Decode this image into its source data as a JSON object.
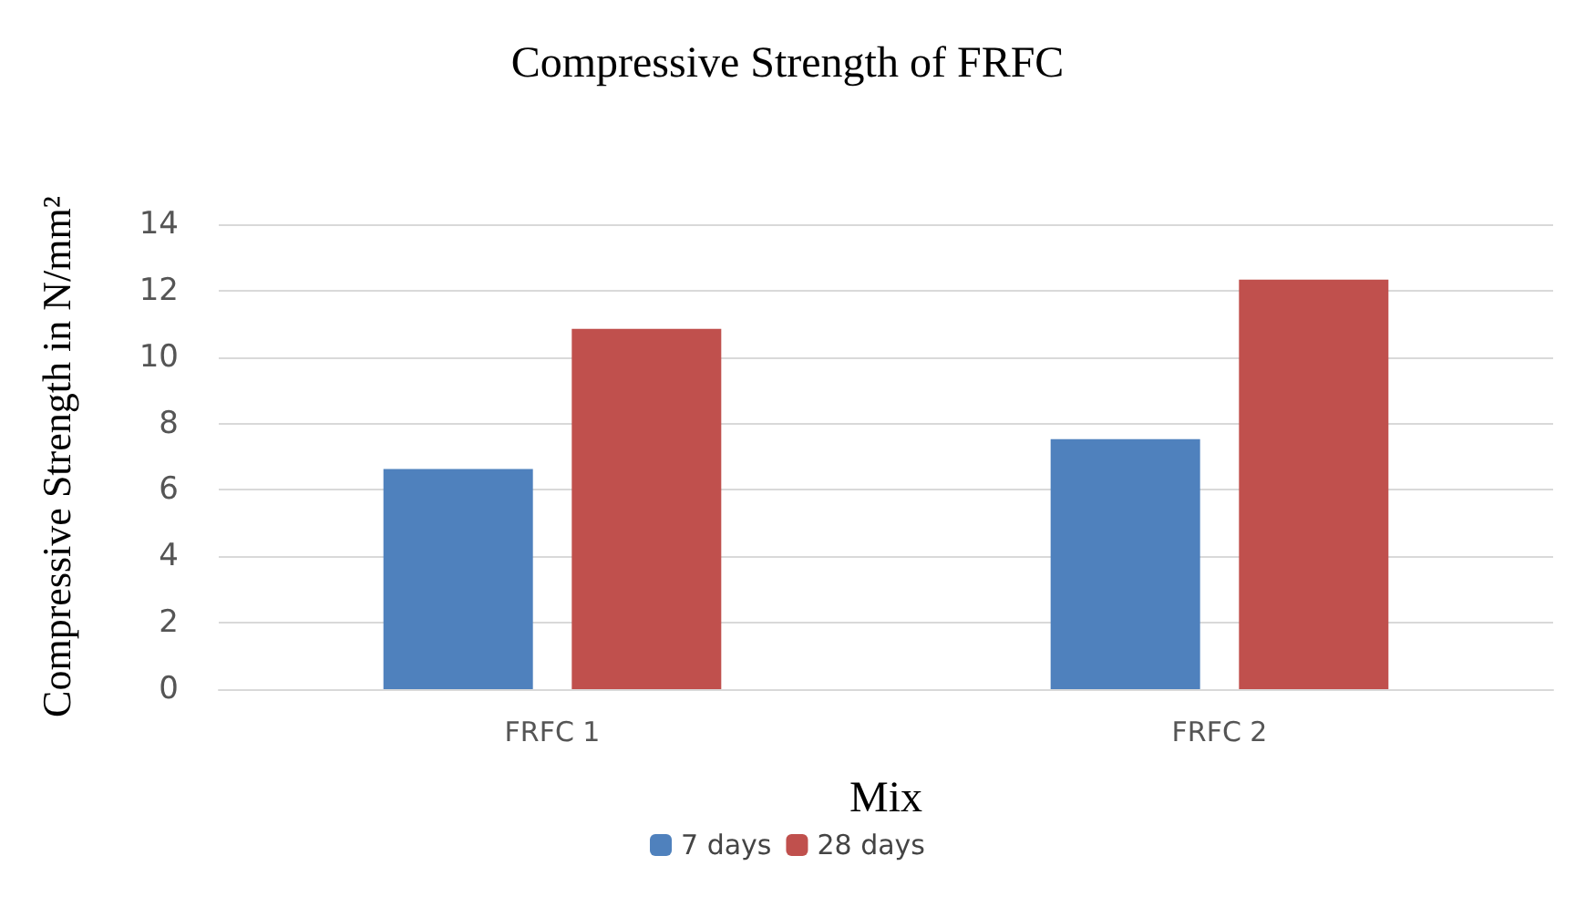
{
  "chart_data": {
    "type": "bar",
    "title": "Compressive Strength of FRFC",
    "xlabel": "Mix",
    "ylabel": "Compressive Strength in N/mm²",
    "categories": [
      "FRFC 1",
      "FRFC 2"
    ],
    "series": [
      {
        "name": "7 days",
        "color": "#4f81bd",
        "values": [
          6.63,
          7.53
        ]
      },
      {
        "name": "28 days",
        "color": "#c0504d",
        "values": [
          10.85,
          12.33
        ]
      }
    ],
    "ylim": [
      0,
      14
    ],
    "yticks": [
      0,
      2,
      4,
      6,
      8,
      10,
      12,
      14
    ],
    "grid": "y",
    "legend": "bottom"
  }
}
